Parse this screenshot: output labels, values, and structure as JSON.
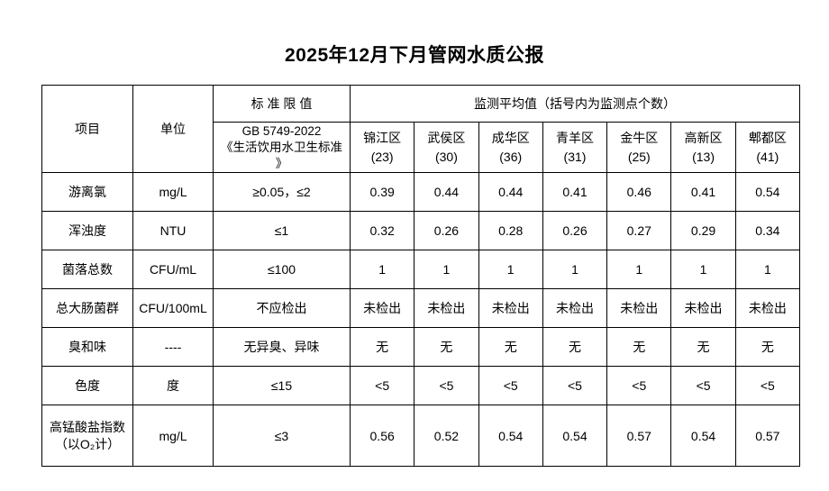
{
  "page": {
    "title": "2025年12月下月管网水质公报"
  },
  "table": {
    "headers": {
      "item": "项目",
      "unit": "单位",
      "standard_limit": "标 准 限 值",
      "standard_ref": "GB 5749-2022\n《生活饮用水卫生标准\n》",
      "monitoring": "监测平均值（括号内为监测点个数）"
    },
    "districts": [
      {
        "name": "锦江区",
        "count": "(23)"
      },
      {
        "name": "武侯区",
        "count": "(30)"
      },
      {
        "name": "成华区",
        "count": "(36)"
      },
      {
        "name": "青羊区",
        "count": "(31)"
      },
      {
        "name": "金牛区",
        "count": "(25)"
      },
      {
        "name": "高新区",
        "count": "(13)"
      },
      {
        "name": "郫都区",
        "count": "(41)"
      }
    ],
    "rows": [
      {
        "item": "游离氯",
        "unit": "mg/L",
        "limit": "≥0.05，≤2",
        "values": [
          "0.39",
          "0.44",
          "0.44",
          "0.41",
          "0.46",
          "0.41",
          "0.54"
        ]
      },
      {
        "item": "浑浊度",
        "unit": "NTU",
        "limit": "≤1",
        "values": [
          "0.32",
          "0.26",
          "0.28",
          "0.26",
          "0.27",
          "0.29",
          "0.34"
        ]
      },
      {
        "item": "菌落总数",
        "unit": "CFU/mL",
        "limit": "≤100",
        "values": [
          "1",
          "1",
          "1",
          "1",
          "1",
          "1",
          "1"
        ]
      },
      {
        "item": "总大肠菌群",
        "unit": "CFU/100mL",
        "limit": "不应检出",
        "values": [
          "未检出",
          "未检出",
          "未检出",
          "未检出",
          "未检出",
          "未检出",
          "未检出"
        ]
      },
      {
        "item": "臭和味",
        "unit": "----",
        "limit": "无异臭、异味",
        "values": [
          "无",
          "无",
          "无",
          "无",
          "无",
          "无",
          "无"
        ]
      },
      {
        "item": "色度",
        "unit": "度",
        "limit": "≤15",
        "values": [
          "<5",
          "<5",
          "<5",
          "<5",
          "<5",
          "<5",
          "<5"
        ]
      },
      {
        "item": "高锰酸盐指数\n（以O₂计）",
        "unit": "mg/L",
        "limit": "≤3",
        "values": [
          "0.56",
          "0.52",
          "0.54",
          "0.54",
          "0.57",
          "0.54",
          "0.57"
        ]
      }
    ]
  }
}
